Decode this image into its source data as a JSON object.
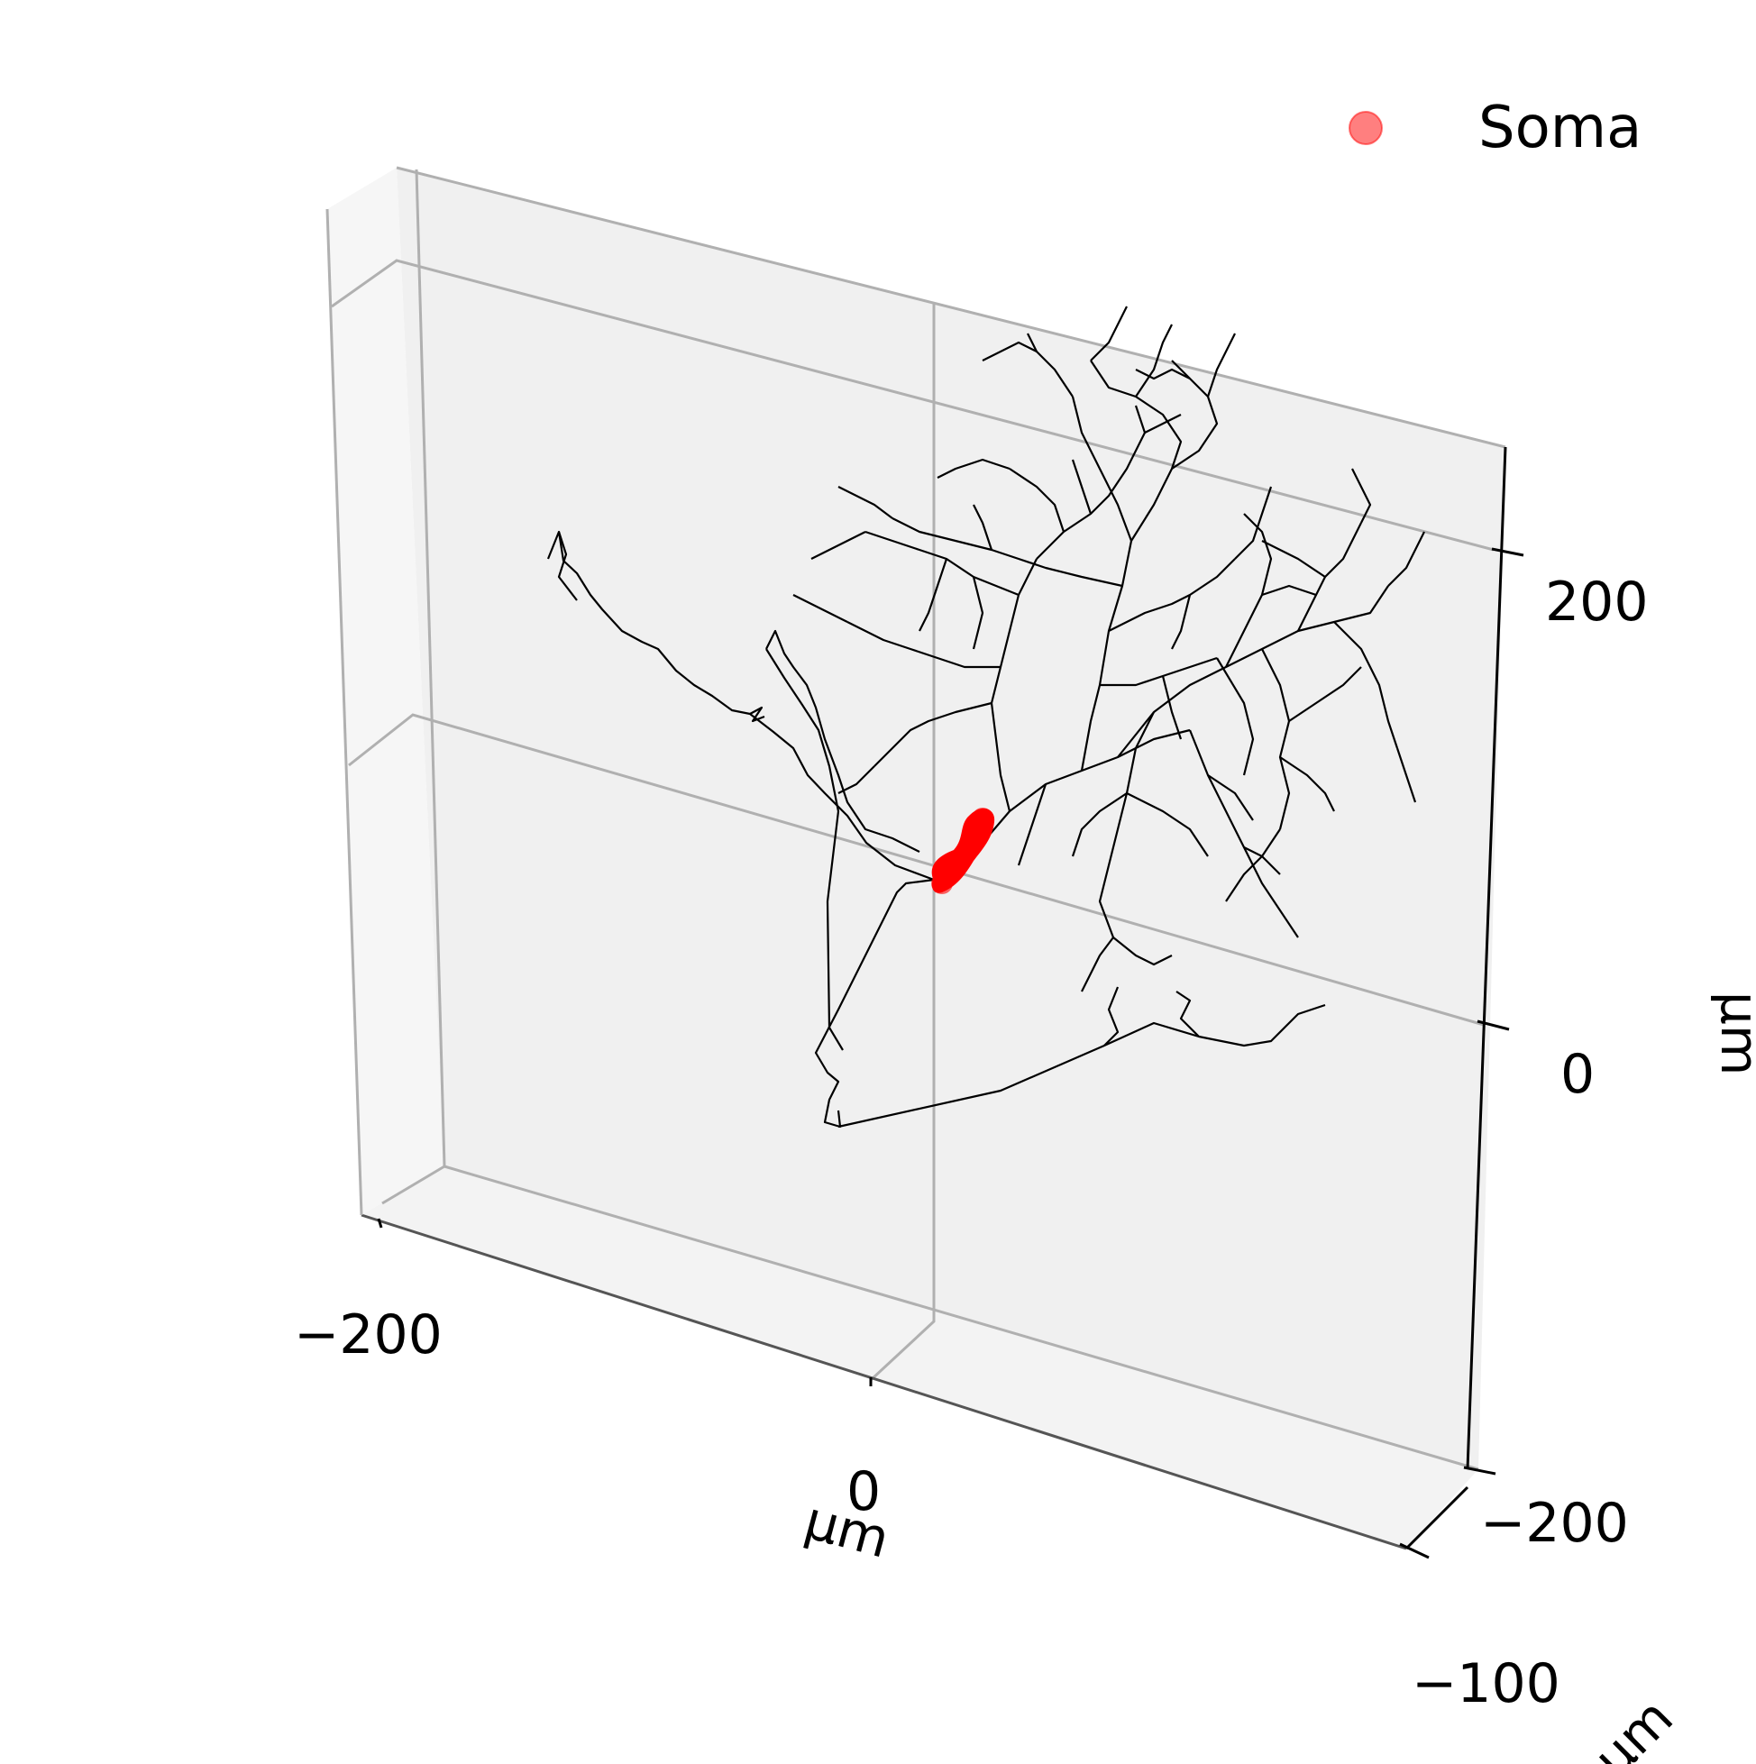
{
  "figure": {
    "type": "3d-neuron-morphology",
    "legend": {
      "label": "Soma",
      "marker_color": "#ff0000",
      "marker_alpha": 0.5
    },
    "axes": {
      "x": {
        "label": "μm",
        "ticks": [
          "−200",
          "0"
        ]
      },
      "y": {
        "label": "μm",
        "ticks": [
          "−100"
        ]
      },
      "z": {
        "label": "μm",
        "ticks": [
          "200",
          "0",
          "−200"
        ]
      }
    },
    "colors": {
      "pane": "#f0f0f0",
      "pane_side": "#f6f6f6",
      "grid": "#b0b0b0",
      "neurite": "#000000",
      "soma": "#ff0000"
    }
  }
}
